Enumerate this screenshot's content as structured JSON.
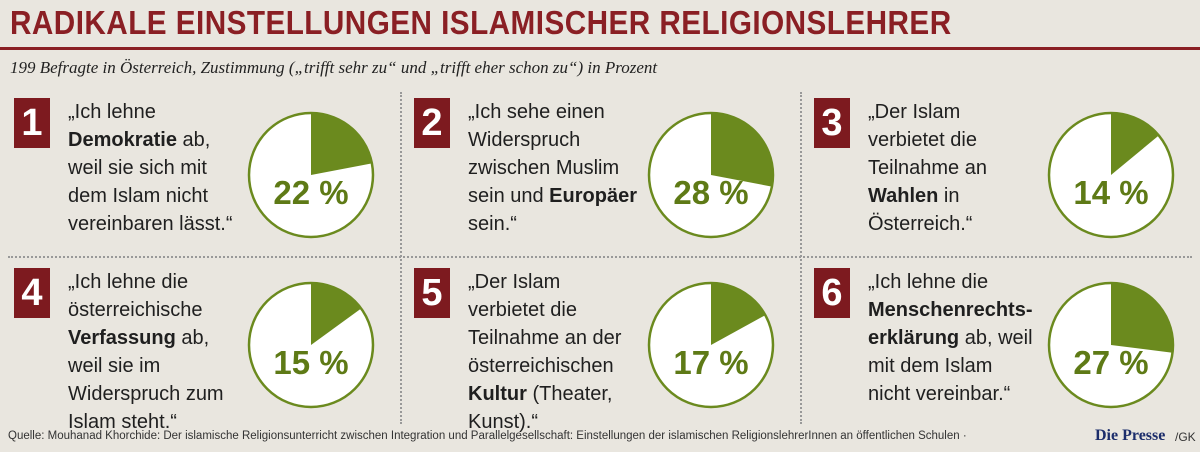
{
  "title": "RADIKALE EINSTELLUNGEN ISLAMISCHER RELIGIONSLEHRER",
  "subtitle": "199 Befragte in Österreich, Zustimmung („trifft sehr zu“ und „trifft eher schon zu“) in Prozent",
  "colors": {
    "accent": "#8a1f24",
    "number_box": "#7d1a1f",
    "pie_fill": "#6b8a1e",
    "pie_stroke": "#6b8a1e",
    "text_green": "#5e7a16"
  },
  "chart_data": [
    {
      "type": "pie",
      "number": "1",
      "quote": [
        [
          "„Ich lehne ",
          false
        ],
        [
          "Demokratie",
          true
        ],
        [
          " ab, weil sie sich mit dem Islam nicht vereinbaren lässt.“",
          false
        ]
      ],
      "value": 22,
      "label": "22 %"
    },
    {
      "type": "pie",
      "number": "2",
      "quote": [
        [
          "„Ich sehe einen Widerspruch zwischen Muslim sein und ",
          false
        ],
        [
          "Europäer",
          true
        ],
        [
          " sein.“",
          false
        ]
      ],
      "value": 28,
      "label": "28 %"
    },
    {
      "type": "pie",
      "number": "3",
      "quote": [
        [
          "„Der Islam verbietet die Teilnahme an ",
          false
        ],
        [
          "Wahlen",
          true
        ],
        [
          " in Österreich.“",
          false
        ]
      ],
      "value": 14,
      "label": "14 %"
    },
    {
      "type": "pie",
      "number": "4",
      "quote": [
        [
          "„Ich lehne die österreichische ",
          false
        ],
        [
          "Verfassung",
          true
        ],
        [
          " ab, weil sie im Widerspruch zum Islam steht.“",
          false
        ]
      ],
      "value": 15,
      "label": "15 %"
    },
    {
      "type": "pie",
      "number": "5",
      "quote": [
        [
          "„Der Islam verbietet die Teilnahme an der österreichischen ",
          false
        ],
        [
          "Kultur",
          true
        ],
        [
          " (Theater, Kunst).“",
          false
        ]
      ],
      "value": 17,
      "label": "17 %"
    },
    {
      "type": "pie",
      "number": "6",
      "quote": [
        [
          "„Ich lehne die ",
          false
        ],
        [
          "Menschenrechts-erklärung",
          true
        ],
        [
          " ab, weil mit dem Islam nicht vereinbar.“",
          false
        ]
      ],
      "value": 27,
      "label": "27 %"
    }
  ],
  "source": "Quelle: Mouhanad Khorchide: Der islamische Religionsunterricht zwischen Integration und Parallelgesellschaft: Einstellungen der islamischen ReligionslehrerInnen an öffentlichen Schulen  ·",
  "logo": "Die Presse",
  "logo_suffix": "/GK"
}
